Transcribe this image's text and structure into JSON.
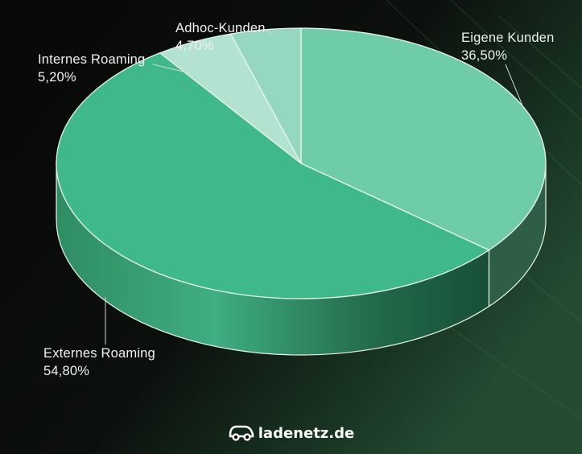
{
  "chart_data": {
    "type": "pie",
    "style": "3d",
    "slices": [
      {
        "label": "Eigene Kunden",
        "value": 36.5,
        "display": "36,50%",
        "color": "#6ecca9"
      },
      {
        "label": "Externes Roaming",
        "value": 54.8,
        "display": "54,80%",
        "color": "#40b98a"
      },
      {
        "label": "Internes Roaming",
        "value": 5.2,
        "display": "5,20%",
        "color": "#b2e3d0"
      },
      {
        "label": "Adhoc-Kunden",
        "value": 4.7,
        "display": "4,70%",
        "color": "#96d7bf"
      }
    ]
  },
  "brand": {
    "text": "ladenetz.de",
    "icon": "car-icon"
  }
}
